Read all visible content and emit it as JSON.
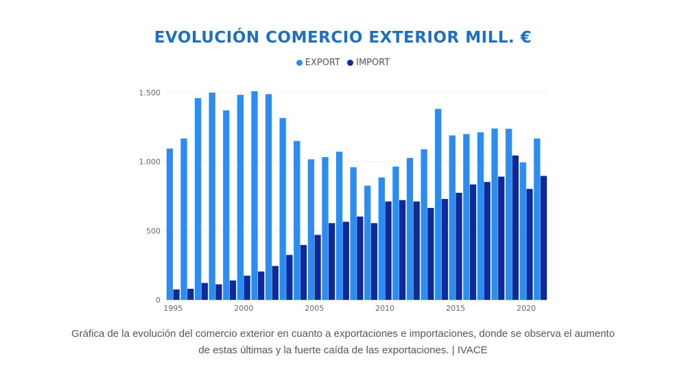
{
  "chart_data": {
    "type": "bar",
    "title": "EVOLUCIÓN COMERCIO EXTERIOR MILL. €",
    "xlabel": "",
    "ylabel": "",
    "categories": [
      "1995",
      "1996",
      "1997",
      "1998",
      "1999",
      "2000",
      "2001",
      "2002",
      "2003",
      "2004",
      "2005",
      "2006",
      "2007",
      "2008",
      "2009",
      "2010",
      "2011",
      "2012",
      "2013",
      "2014",
      "2015",
      "2016",
      "2017",
      "2018",
      "2019",
      "2020",
      "2021"
    ],
    "series": [
      {
        "name": "EXPORT",
        "color": "#2b8df0",
        "values": [
          1095,
          1168,
          1460,
          1500,
          1372,
          1484,
          1510,
          1489,
          1316,
          1150,
          1017,
          1033,
          1072,
          960,
          826,
          886,
          965,
          1027,
          1090,
          1382,
          1190,
          1200,
          1213,
          1240,
          1238,
          995,
          1168
        ]
      },
      {
        "name": "IMPORT",
        "color": "#0d2a9a",
        "values": [
          75,
          80,
          122,
          112,
          140,
          175,
          205,
          245,
          325,
          397,
          470,
          555,
          565,
          603,
          555,
          712,
          722,
          712,
          665,
          730,
          775,
          835,
          853,
          892,
          1045,
          803,
          897
        ]
      }
    ],
    "ylim": [
      0,
      1500
    ],
    "yticks": [
      0,
      500,
      1000,
      1500
    ],
    "ytick_labels": [
      "0",
      "500",
      "1.000",
      "1.500"
    ],
    "xtick_labels": [
      "1995",
      "2000",
      "2005",
      "2010",
      "2015",
      "2020"
    ],
    "legend_position": "top-center",
    "grid": "dotted horizontal"
  },
  "caption": "Gráfica de la evolución del comercio exterior en cuanto a exportaciones e importaciones, donde se observa el aumento de estas últimas y la fuerte caída de las exportaciones. | IVACE"
}
